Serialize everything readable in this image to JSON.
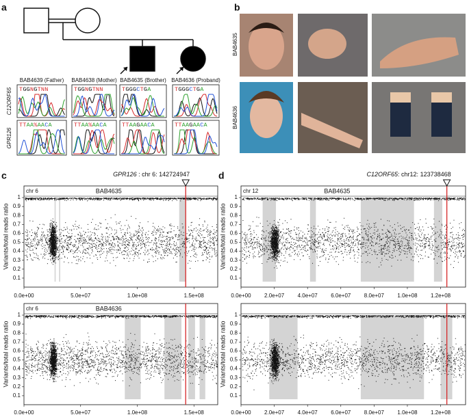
{
  "panel_a": {
    "label": "a",
    "genes": [
      "C12ORF65",
      "GPR126"
    ],
    "samples": [
      {
        "name": "BAB4639 (Father)",
        "c12orf65": "TGGNGTNN",
        "gpr126": "TTAA%AACA"
      },
      {
        "name": "BAB4638 (Mother)",
        "c12orf65": "TGGNGTNN",
        "gpr126": "TTAA%AACA"
      },
      {
        "name": "BAB4635 (Brother)",
        "c12orf65": "TGGGCTGA",
        "gpr126": "TTAAGAACA"
      },
      {
        "name": "BAB4636 (Proband)",
        "c12orf65": "TGGGCTGA",
        "gpr126": "TTAAGAACA"
      }
    ]
  },
  "panel_b": {
    "label": "b",
    "samples": [
      "BAB4635",
      "BAB4636"
    ]
  },
  "chart_data": [
    {
      "type": "scatter",
      "panel_label": "c",
      "annotation": {
        "gene": "GPR126",
        "locus": " : chr 6: ",
        "position": 142724947
      },
      "chr_label": "chr 6",
      "title": "BAB4635",
      "ylabel": "Variants/total reads ratio",
      "xlim": [
        0,
        171000000
      ],
      "xticks": [
        {
          "value": 0,
          "label": "0.0e+00"
        },
        {
          "value": 50000000,
          "label": "5.0e+07"
        },
        {
          "value": 100000000,
          "label": "1.0e+08"
        },
        {
          "value": 150000000,
          "label": "1.5e+08"
        }
      ],
      "ylim": [
        0,
        1
      ],
      "yticks": [
        0.1,
        0.2,
        0.3,
        0.4,
        0.5,
        0.6,
        0.7,
        0.8,
        0.9,
        1
      ],
      "shaded": [
        [
          27000000,
          28000000
        ],
        [
          31000000,
          32000000
        ],
        [
          137000000,
          143000000
        ]
      ],
      "shade_color": "#d4d4d4",
      "marker_color": "#d62728"
    },
    {
      "type": "scatter",
      "chr_label": "chr 6",
      "title": "BAB4636",
      "ylabel": "Variants/total reads ratio",
      "xlim": [
        0,
        171000000
      ],
      "xticks": [
        {
          "value": 0,
          "label": "0.0e+00"
        },
        {
          "value": 50000000,
          "label": "5.0e+07"
        },
        {
          "value": 100000000,
          "label": "1.0e+08"
        },
        {
          "value": 150000000,
          "label": "1.5e+08"
        }
      ],
      "ylim": [
        0,
        1
      ],
      "yticks": [
        0.1,
        0.2,
        0.3,
        0.4,
        0.5,
        0.6,
        0.7,
        0.8,
        0.9,
        1
      ],
      "shaded": [
        [
          89000000,
          103000000
        ],
        [
          124000000,
          139000000
        ],
        [
          145000000,
          151000000
        ],
        [
          155000000,
          160000000
        ]
      ],
      "shade_color": "#d4d4d4",
      "marker_color": "#d62728"
    },
    {
      "type": "scatter",
      "panel_label": "d",
      "annotation": {
        "gene": "C12ORF65",
        "locus": ": chr12: ",
        "position": 123738468
      },
      "chr_label": "chr 12",
      "title": "BAB4635",
      "ylabel": "Variants/total reads ratio",
      "xlim": [
        0,
        135000000
      ],
      "xticks": [
        {
          "value": 0,
          "label": "0.0e+00"
        },
        {
          "value": 20000000,
          "label": "2.0e+07"
        },
        {
          "value": 40000000,
          "label": "4.0e+07"
        },
        {
          "value": 60000000,
          "label": "6.0e+07"
        },
        {
          "value": 80000000,
          "label": "8.0e+07"
        },
        {
          "value": 100000000,
          "label": "1.0e+08"
        },
        {
          "value": 120000000,
          "label": "1.2e+08"
        }
      ],
      "ylim": [
        0,
        1
      ],
      "yticks": [
        0.1,
        0.2,
        0.3,
        0.4,
        0.5,
        0.6,
        0.7,
        0.8,
        0.9,
        1
      ],
      "shaded": [
        [
          13000000,
          21000000
        ],
        [
          41500000,
          45000000
        ],
        [
          72000000,
          104000000
        ],
        [
          116000000,
          121000000
        ]
      ],
      "shade_color": "#d4d4d4",
      "marker_color": "#d62728"
    },
    {
      "type": "scatter",
      "ylabel": "Variants/total reads ratio",
      "xlim": [
        0,
        135000000
      ],
      "xticks": [
        {
          "value": 0,
          "label": "0.0e+00"
        },
        {
          "value": 20000000,
          "label": "2.0e+07"
        },
        {
          "value": 40000000,
          "label": "4.0e+07"
        },
        {
          "value": 60000000,
          "label": "6.0e+07"
        },
        {
          "value": 80000000,
          "label": "8.0e+07"
        },
        {
          "value": 100000000,
          "label": "1.0e+08"
        },
        {
          "value": 120000000,
          "label": "1.2e+08"
        }
      ],
      "ylim": [
        0,
        1
      ],
      "yticks": [
        0.1,
        0.2,
        0.3,
        0.4,
        0.5,
        0.6,
        0.7,
        0.8,
        0.9,
        1
      ],
      "shaded": [
        [
          17000000,
          34000000
        ],
        [
          72000000,
          110000000
        ],
        [
          120000000,
          127000000
        ]
      ],
      "shade_color": "#d4d4d4",
      "marker_color": "#d62728"
    }
  ]
}
